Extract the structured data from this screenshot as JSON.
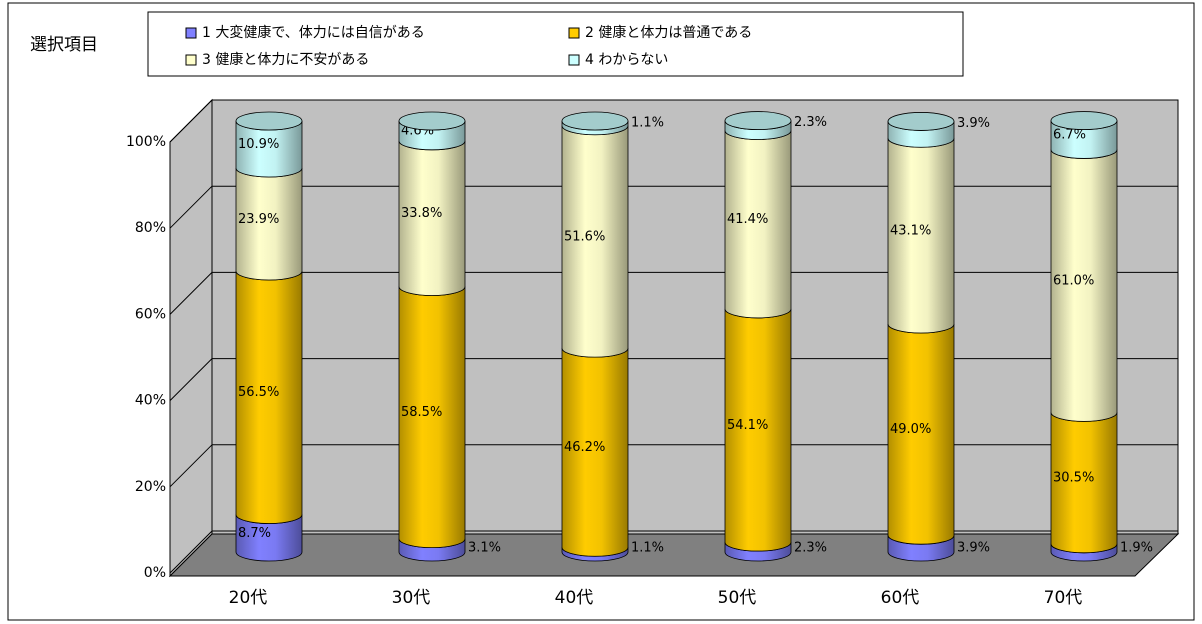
{
  "chart_data": {
    "type": "bar",
    "stacked": true,
    "legend_title": "選択項目",
    "categories": [
      "20代",
      "30代",
      "40代",
      "50代",
      "60代",
      "70代"
    ],
    "series": [
      {
        "name": "1 大変健康で、体力には自信がある",
        "color": "#8080ff",
        "values": [
          8.7,
          3.1,
          1.1,
          2.3,
          3.9,
          1.9
        ],
        "value_labels": [
          "8.7%",
          "3.1%",
          "1.1%",
          "2.3%",
          "3.9%",
          "1.9%"
        ]
      },
      {
        "name": "2 健康と体力は普通である",
        "color": "#ffcc00",
        "values": [
          56.5,
          58.5,
          46.2,
          54.1,
          49.0,
          30.5
        ],
        "value_labels": [
          "56.5%",
          "58.5%",
          "46.2%",
          "54.1%",
          "49.0%",
          "30.5%"
        ]
      },
      {
        "name": "3 健康と体力に不安がある",
        "color": "#ffffcc",
        "values": [
          23.9,
          33.8,
          51.6,
          41.4,
          43.1,
          61.0
        ],
        "value_labels": [
          "23.9%",
          "33.8%",
          "51.6%",
          "41.4%",
          "43.1%",
          "61.0%"
        ]
      },
      {
        "name": "4 わからない",
        "color": "#ccffff",
        "values": [
          10.9,
          4.6,
          1.1,
          2.3,
          3.9,
          6.7
        ],
        "value_labels": [
          "10.9%",
          "4.6%",
          "1.1%",
          "2.3%",
          "3.9%",
          "6.7%"
        ]
      }
    ],
    "ylim": [
      0,
      100
    ],
    "yticks": [
      {
        "value": 0,
        "label": "0%"
      },
      {
        "value": 20,
        "label": "20%"
      },
      {
        "value": 40,
        "label": "40%"
      },
      {
        "value": 60,
        "label": "60%"
      },
      {
        "value": 80,
        "label": "80%"
      },
      {
        "value": 100,
        "label": "100%"
      }
    ],
    "grid": true
  }
}
